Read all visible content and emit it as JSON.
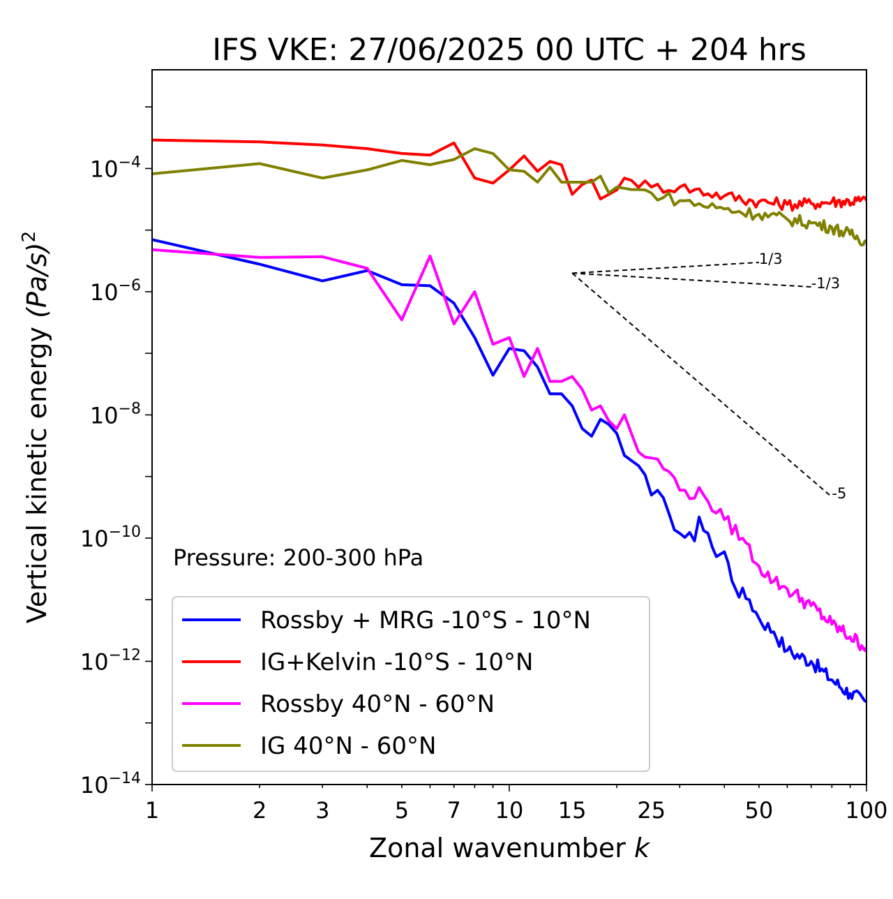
{
  "chart_data": {
    "type": "line",
    "title": "IFS VKE: 27/06/2025 00 UTC + 204 hrs",
    "xlabel": "Zonal wavenumber",
    "xlabel_symbol": "k",
    "ylabel": "Vertical kinetic energy",
    "ylabel_unit": "(Pa/s)",
    "ylabel_unit_exp": "2",
    "xscale": "log",
    "yscale": "log",
    "xlim": [
      1,
      100
    ],
    "ylim": [
      1e-14,
      0.004
    ],
    "x_ticks": [
      {
        "value": 1,
        "label": "1"
      },
      {
        "value": 2,
        "label": "2"
      },
      {
        "value": 3,
        "label": "3"
      },
      {
        "value": 5,
        "label": "5"
      },
      {
        "value": 7,
        "label": "7"
      },
      {
        "value": 10,
        "label": "10"
      },
      {
        "value": 15,
        "label": "15"
      },
      {
        "value": 25,
        "label": "25"
      },
      {
        "value": 50,
        "label": "50"
      },
      {
        "value": 100,
        "label": "100"
      }
    ],
    "y_ticks": [
      {
        "exp": -4,
        "base": "10",
        "label": "−4"
      },
      {
        "exp": -6,
        "base": "10",
        "label": "−6"
      },
      {
        "exp": -8,
        "base": "10",
        "label": "−8"
      },
      {
        "exp": -10,
        "base": "10",
        "label": "−10"
      },
      {
        "exp": -12,
        "base": "10",
        "label": "−12"
      },
      {
        "exp": -14,
        "base": "10",
        "label": "−14"
      }
    ],
    "annotation": "Pressure: 200-300 hPa",
    "legend_position": "lower-left",
    "series": [
      {
        "name": "Rossby + MRG -10°S - 10°N",
        "color": "#0000ff",
        "anchors": [
          [
            1,
            7e-06
          ],
          [
            2,
            2.8e-06
          ],
          [
            3,
            1.5e-06
          ],
          [
            4,
            2.2e-06
          ],
          [
            5,
            1.3e-06
          ],
          [
            6,
            1.25e-06
          ],
          [
            7,
            6.5e-07
          ],
          [
            8,
            1.8e-07
          ],
          [
            9,
            4.4e-08
          ],
          [
            10,
            1.2e-07
          ],
          [
            11,
            1.1e-07
          ],
          [
            12,
            6e-08
          ],
          [
            13,
            2.2e-08
          ],
          [
            14,
            2.2e-08
          ],
          [
            15,
            1.4e-08
          ],
          [
            16,
            6e-09
          ],
          [
            17,
            4.5e-09
          ],
          [
            18,
            8.5e-09
          ],
          [
            19,
            7e-09
          ],
          [
            20,
            5e-09
          ],
          [
            21,
            2.2e-09
          ],
          [
            23,
            1.5e-09
          ],
          [
            25,
            5e-10
          ],
          [
            27,
            4.5e-10
          ],
          [
            28,
            2.5e-10
          ],
          [
            30,
            1.2e-10
          ],
          [
            33,
            9e-11
          ],
          [
            34,
            2.2e-10
          ],
          [
            36,
            1.2e-10
          ],
          [
            38,
            5e-11
          ],
          [
            40,
            6e-11
          ],
          [
            43,
            1.5e-11
          ],
          [
            47,
            1e-11
          ],
          [
            50,
            5e-12
          ],
          [
            55,
            3e-12
          ],
          [
            60,
            1.5e-12
          ],
          [
            70,
            1e-12
          ],
          [
            80,
            5e-13
          ],
          [
            90,
            3e-13
          ],
          [
            100,
            2.2e-13
          ]
        ],
        "noise": 0.12
      },
      {
        "name": "IG+Kelvin -10°S - 10°N",
        "color": "#ff0000",
        "anchors": [
          [
            1,
            0.00029
          ],
          [
            2,
            0.00027
          ],
          [
            3,
            0.00024
          ],
          [
            4,
            0.00021
          ],
          [
            5,
            0.000175
          ],
          [
            6,
            0.000165
          ],
          [
            7,
            0.00026
          ],
          [
            8,
            7e-05
          ],
          [
            9,
            5.8e-05
          ],
          [
            10,
            9.5e-05
          ],
          [
            11,
            0.00016
          ],
          [
            12,
            9e-05
          ],
          [
            13,
            0.00013
          ],
          [
            14,
            0.000115
          ],
          [
            15,
            3.8e-05
          ],
          [
            16,
            5.5e-05
          ],
          [
            17,
            6.5e-05
          ],
          [
            18,
            3.2e-05
          ],
          [
            19,
            3.8e-05
          ],
          [
            20,
            4.5e-05
          ],
          [
            21,
            7e-05
          ],
          [
            25,
            5e-05
          ],
          [
            30,
            5e-05
          ],
          [
            40,
            3.6e-05
          ],
          [
            50,
            2.9e-05
          ],
          [
            60,
            2.6e-05
          ],
          [
            70,
            2.7e-05
          ],
          [
            80,
            2.9e-05
          ],
          [
            100,
            3e-05
          ]
        ],
        "noise": 0.1
      },
      {
        "name": "Rossby 40°N - 60°N",
        "color": "#ff00ff",
        "anchors": [
          [
            1,
            4.8e-06
          ],
          [
            2,
            3.6e-06
          ],
          [
            3,
            3.7e-06
          ],
          [
            4,
            2.4e-06
          ],
          [
            5,
            3.5e-07
          ],
          [
            6,
            3.8e-06
          ],
          [
            7,
            3e-07
          ],
          [
            8,
            1e-06
          ],
          [
            9,
            1.4e-07
          ],
          [
            10,
            1.8e-07
          ],
          [
            11,
            4.2e-08
          ],
          [
            12,
            1.2e-07
          ],
          [
            13,
            3.5e-08
          ],
          [
            14,
            3.5e-08
          ],
          [
            15,
            4.2e-08
          ],
          [
            16,
            2.6e-08
          ],
          [
            17,
            1.2e-08
          ],
          [
            18,
            1.4e-08
          ],
          [
            19,
            8e-09
          ],
          [
            20,
            6e-09
          ],
          [
            21,
            1e-08
          ],
          [
            23,
            2.5e-09
          ],
          [
            25,
            2e-09
          ],
          [
            28,
            1.2e-09
          ],
          [
            30,
            6e-10
          ],
          [
            35,
            5e-10
          ],
          [
            40,
            2e-10
          ],
          [
            45,
            1e-10
          ],
          [
            50,
            3.5e-11
          ],
          [
            55,
            2e-11
          ],
          [
            60,
            1.5e-11
          ],
          [
            70,
            8e-12
          ],
          [
            80,
            4e-12
          ],
          [
            90,
            2.5e-12
          ],
          [
            100,
            1.7e-12
          ]
        ],
        "noise": 0.12
      },
      {
        "name": "IG 40°N - 60°N",
        "color": "#808000",
        "anchors": [
          [
            1,
            8.2e-05
          ],
          [
            2,
            0.00012
          ],
          [
            3,
            7e-05
          ],
          [
            4,
            9.5e-05
          ],
          [
            5,
            0.000135
          ],
          [
            6,
            0.000115
          ],
          [
            7,
            0.00014
          ],
          [
            8,
            0.00021
          ],
          [
            9,
            0.000175
          ],
          [
            10,
            9.5e-05
          ],
          [
            11,
            9e-05
          ],
          [
            12,
            6e-05
          ],
          [
            13,
            0.000105
          ],
          [
            14,
            6e-05
          ],
          [
            15,
            6e-05
          ],
          [
            16,
            6e-05
          ],
          [
            17,
            6e-05
          ],
          [
            18,
            7.5e-05
          ],
          [
            19,
            4e-05
          ],
          [
            20,
            5e-05
          ],
          [
            25,
            4e-05
          ],
          [
            30,
            3e-05
          ],
          [
            40,
            2.2e-05
          ],
          [
            50,
            1.8e-05
          ],
          [
            60,
            1.5e-05
          ],
          [
            70,
            1.3e-05
          ],
          [
            80,
            1.1e-05
          ],
          [
            90,
            8.5e-06
          ],
          [
            100,
            6.5e-06
          ]
        ],
        "noise": 0.1
      }
    ],
    "reference_slopes": [
      {
        "label": "1/3",
        "slope": 0.3333,
        "x0": 15,
        "y0": 2e-06,
        "x1": 50
      },
      {
        "label": "-1/3",
        "slope": -0.3333,
        "x0": 15,
        "y0": 2e-06,
        "x1": 70
      },
      {
        "label": "-5",
        "slope": -5,
        "x0": 15,
        "y0": 2e-06,
        "x1": 80
      }
    ]
  }
}
